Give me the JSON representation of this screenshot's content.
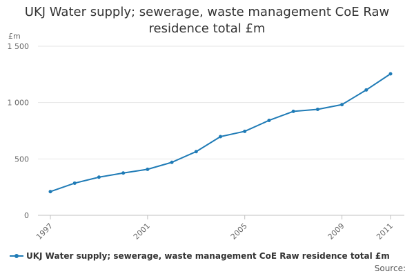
{
  "chart_data": {
    "type": "line",
    "title": "UKJ Water supply; sewerage, waste management CoE Raw residence total £m",
    "title_lines": [
      "UKJ Water supply; sewerage, waste management CoE Raw",
      "residence total £m"
    ],
    "ylabel": "£m",
    "xlabel": "",
    "x": [
      1997,
      1998,
      1999,
      2000,
      2001,
      2002,
      2003,
      2004,
      2005,
      2006,
      2007,
      2008,
      2009,
      2010,
      2011
    ],
    "series": [
      {
        "name": "UKJ Water supply; sewerage, waste management CoE Raw residence total £m",
        "color": "#1f7bb6",
        "values": [
          210,
          285,
          338,
          375,
          408,
          470,
          565,
          698,
          745,
          842,
          922,
          940,
          982,
          1112,
          1255
        ]
      }
    ],
    "ylim": [
      0,
      1500
    ],
    "yticks": [
      0,
      500,
      1000,
      1500
    ],
    "ytick_labels": [
      "0",
      "500",
      "1 000",
      "1 500"
    ],
    "xticks_labeled": [
      1997,
      2001,
      2005,
      2009,
      2011
    ],
    "grid": true,
    "legend": "bottom",
    "credit": "Source:"
  }
}
